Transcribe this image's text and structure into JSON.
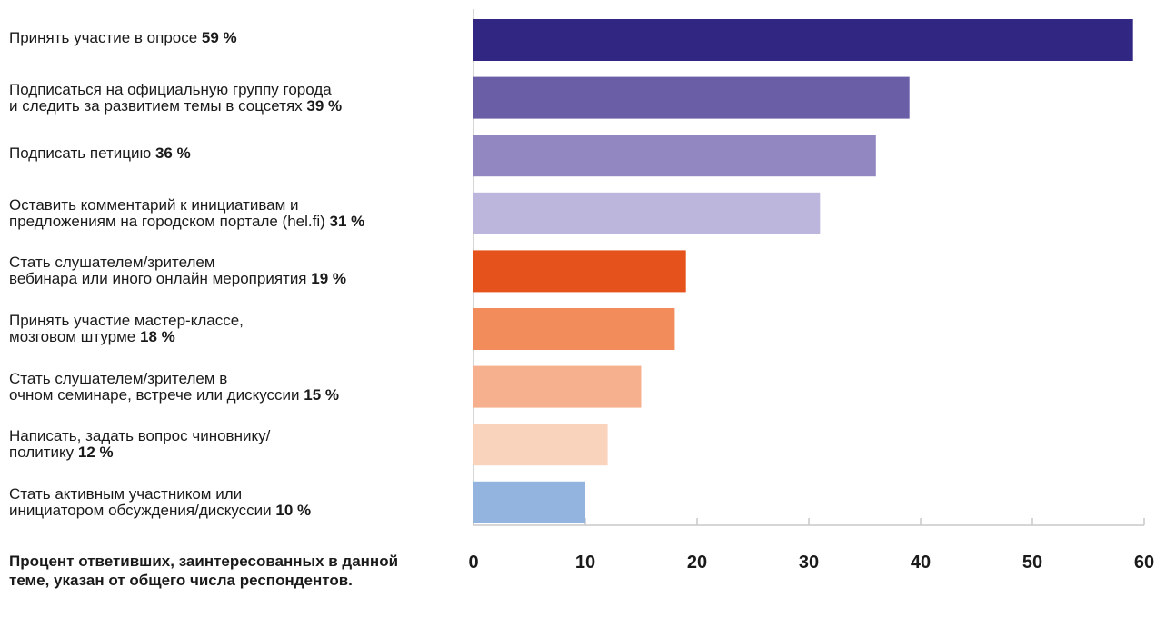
{
  "chart_data": {
    "type": "bar",
    "orientation": "horizontal",
    "categories": [
      [
        "Принять участие в опросе"
      ],
      [
        "Подписаться на официальную группу города",
        "и следить за развитием темы в соцсетях"
      ],
      [
        "Подписать петицию"
      ],
      [
        "Оставить комментарий к инициативам и",
        "предложениям на городском портале (hel.fi)"
      ],
      [
        "Стать слушателем/зрителем",
        "вебинара или иного онлайн мероприятия"
      ],
      [
        "Принять участие мастер-классе,",
        "мозговом штурме"
      ],
      [
        "Стать слушателем/зрителем в",
        "очном семинаре, встрече или дискуссии"
      ],
      [
        "Написать, задать вопрос чиновнику/",
        "политику"
      ],
      [
        "Стать активным участником или",
        "инициатором обсуждения/дискуссии"
      ]
    ],
    "values": [
      59,
      39,
      36,
      31,
      19,
      18,
      15,
      12,
      10
    ],
    "value_labels": [
      "59 %",
      "39 %",
      "36 %",
      "31 %",
      "19 %",
      "18 %",
      "15 %",
      "12 %",
      "10 %"
    ],
    "colors": [
      "#312782",
      "#6a5ea6",
      "#9287c0",
      "#bcb5dc",
      "#e6521c",
      "#f28c5a",
      "#f6b08d",
      "#fad3bd",
      "#93b4de"
    ],
    "xlim": [
      0,
      60
    ],
    "xticks": [
      "0",
      "10",
      "20",
      "30",
      "40",
      "50",
      "60"
    ],
    "xtick_values": [
      0,
      10,
      20,
      30,
      40,
      50,
      60
    ],
    "grid": true,
    "axis_color": "#c8c8c8",
    "footnote": "Процент ответивших, заинтересованных в данной теме, указан от общего числа респондентов."
  }
}
